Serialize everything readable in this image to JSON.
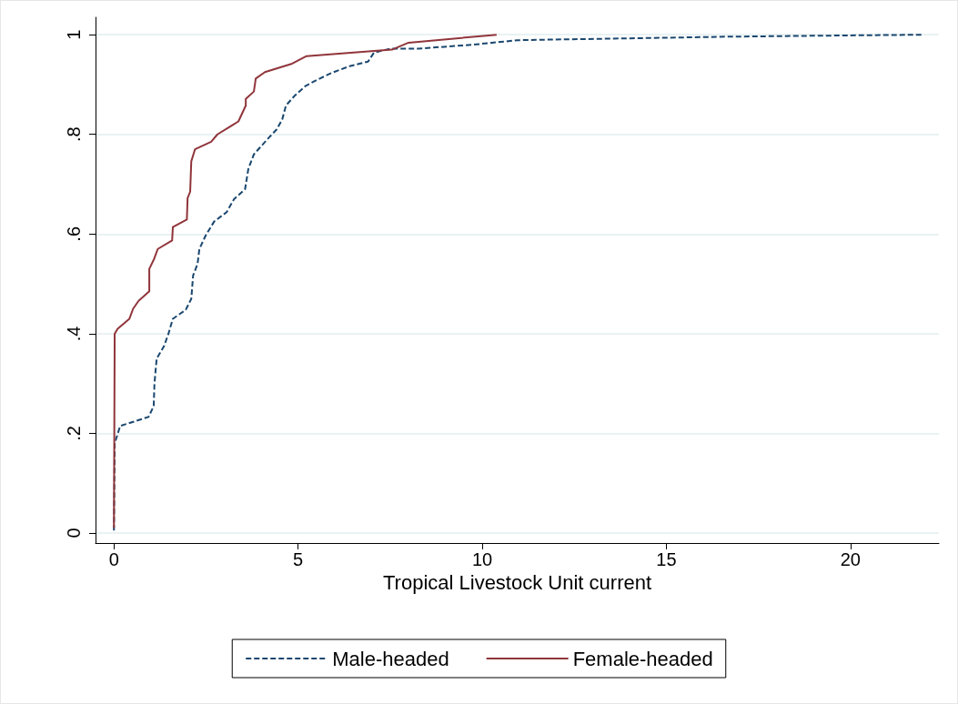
{
  "chart_data": {
    "type": "line",
    "xlabel": "Tropical Livestock Unit current",
    "xlim": [
      -0.5,
      22.4
    ],
    "xticks": [
      0,
      5,
      10,
      15,
      20
    ],
    "ylim": [
      -0.02,
      1.035
    ],
    "yticks": [
      {
        "value": 0,
        "label": "0"
      },
      {
        "value": 0.2,
        "label": ".2"
      },
      {
        "value": 0.4,
        "label": ".4"
      },
      {
        "value": 0.6,
        "label": ".6"
      },
      {
        "value": 0.8,
        "label": ".8"
      },
      {
        "value": 1,
        "label": "1"
      }
    ],
    "grid": "y",
    "legend": "bottom",
    "marker": "none",
    "series": [
      {
        "name": "Male-headed",
        "color": "#1a476f",
        "line_style": "dashed",
        "x": [
          0,
          0.02,
          0.17,
          0.6,
          0.94,
          1.08,
          1.1,
          1.16,
          1.36,
          1.48,
          1.6,
          1.95,
          2.1,
          2.15,
          2.27,
          2.32,
          2.49,
          2.72,
          3.06,
          3.26,
          3.56,
          3.65,
          3.8,
          4.2,
          4.42,
          4.57,
          4.67,
          4.9,
          5.2,
          5.53,
          5.9,
          6.4,
          6.9,
          7.06,
          7.5,
          8.25,
          9.75,
          10.96,
          11.7,
          14.2,
          16.6,
          19.1,
          21.95
        ],
        "values": [
          0.005,
          0.18,
          0.215,
          0.225,
          0.233,
          0.255,
          0.3,
          0.35,
          0.375,
          0.4,
          0.43,
          0.448,
          0.47,
          0.517,
          0.54,
          0.57,
          0.597,
          0.625,
          0.644,
          0.67,
          0.69,
          0.731,
          0.76,
          0.793,
          0.81,
          0.83,
          0.858,
          0.877,
          0.897,
          0.91,
          0.923,
          0.937,
          0.946,
          0.964,
          0.972,
          0.972,
          0.98,
          0.989,
          0.99,
          0.993,
          0.996,
          0.998,
          1.0
        ]
      },
      {
        "name": "Female-headed",
        "color": "#90353b",
        "line_style": "solid",
        "x": [
          0,
          0.02,
          0.1,
          0.42,
          0.52,
          0.67,
          0.96,
          0.96,
          1.09,
          1.19,
          1.58,
          1.6,
          1.98,
          2.0,
          2.07,
          2.1,
          2.2,
          2.64,
          2.81,
          3.38,
          3.58,
          3.58,
          3.8,
          3.85,
          4.1,
          4.84,
          5.23,
          7.55,
          8.0,
          10.39
        ],
        "values": [
          0.01,
          0.4,
          0.41,
          0.43,
          0.45,
          0.466,
          0.485,
          0.53,
          0.55,
          0.57,
          0.587,
          0.614,
          0.629,
          0.672,
          0.685,
          0.746,
          0.77,
          0.785,
          0.8,
          0.826,
          0.858,
          0.871,
          0.886,
          0.912,
          0.925,
          0.942,
          0.957,
          0.97,
          0.984,
          1.0
        ]
      }
    ]
  }
}
